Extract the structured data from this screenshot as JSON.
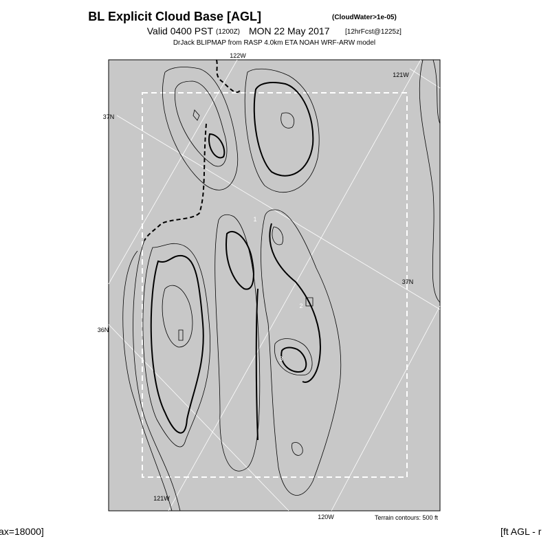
{
  "header": {
    "title": "BL Explicit Cloud Base [AGL]",
    "title_note": "(CloudWater>1e-05)",
    "valid": "Valid 0400 PST",
    "valid_utc": "(1200Z)",
    "date": "MON 22 May 2017",
    "forecast": "[12hrFcst@1225z]",
    "source": "DrJack BLIPMAP from RASP 4.0km ETA NOAH WRF-ARW model"
  },
  "map": {
    "grid_labels": [
      "122W",
      "121W",
      "37N",
      "37N",
      "36N",
      "121W",
      "120W"
    ],
    "contour_labels": [
      "1",
      "2",
      "3"
    ],
    "terrain_note": "Terrain contours: 500 ft"
  },
  "footer": {
    "left": "ax=18000]",
    "right": "[ft AGL - r"
  }
}
